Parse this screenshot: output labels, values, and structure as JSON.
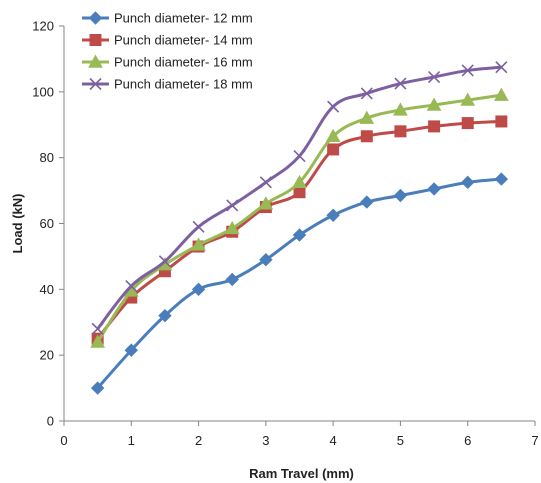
{
  "chart_data": {
    "type": "line",
    "xlabel": "Ram Travel (mm)",
    "ylabel": "Load (kN)",
    "xlim": [
      0,
      7
    ],
    "ylim": [
      0,
      120
    ],
    "xticks": [
      "0",
      "1",
      "2",
      "3",
      "4",
      "5",
      "6",
      "7"
    ],
    "yticks": [
      "0",
      "20",
      "40",
      "60",
      "80",
      "100",
      "120"
    ],
    "grid": false,
    "legend_position": "top-left",
    "x": [
      0.5,
      1,
      1.5,
      2,
      2.5,
      3,
      3.5,
      4,
      4.5,
      5,
      5.5,
      6,
      6.5
    ],
    "series": [
      {
        "name": "Punch diameter- 12 mm",
        "marker": "diamond",
        "color": "#4a7ebb",
        "values": [
          10,
          21.5,
          32,
          40,
          43,
          49,
          56.5,
          62.5,
          66.5,
          68.5,
          70.5,
          72.5,
          73.5
        ]
      },
      {
        "name": "Punch diameter- 14 mm",
        "marker": "square",
        "color": "#be4b48",
        "values": [
          25,
          37.5,
          45.5,
          53,
          57.5,
          65,
          69.5,
          82.5,
          86.5,
          88,
          89.5,
          90.5,
          91
        ]
      },
      {
        "name": "Punch diameter- 16 mm",
        "marker": "triangle",
        "color": "#98b954",
        "values": [
          24,
          39.5,
          47.5,
          53.5,
          58.5,
          66,
          72.5,
          86.5,
          92,
          94.5,
          96,
          97.5,
          99
        ]
      },
      {
        "name": "Punch diameter- 18 mm",
        "marker": "x",
        "color": "#7d60a0",
        "values": [
          28,
          41,
          48.5,
          59,
          65.5,
          72.5,
          80.5,
          95.5,
          99.5,
          102.5,
          104.5,
          106.5,
          107.5
        ]
      }
    ]
  }
}
